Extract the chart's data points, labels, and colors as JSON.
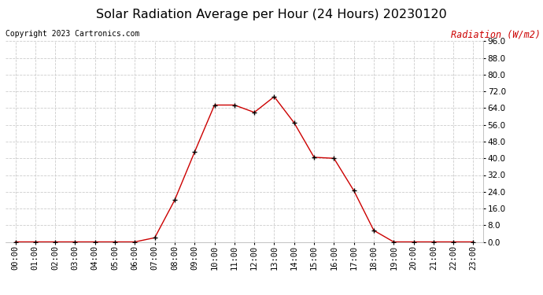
{
  "title": "Solar Radiation Average per Hour (24 Hours) 20230120",
  "copyright": "Copyright 2023 Cartronics.com",
  "ylabel": "Radiation (W/m2)",
  "hours": [
    "00:00",
    "01:00",
    "02:00",
    "03:00",
    "04:00",
    "05:00",
    "06:00",
    "07:00",
    "08:00",
    "09:00",
    "10:00",
    "11:00",
    "12:00",
    "13:00",
    "14:00",
    "15:00",
    "16:00",
    "17:00",
    "18:00",
    "19:00",
    "20:00",
    "21:00",
    "22:00",
    "23:00"
  ],
  "values": [
    0.0,
    0.0,
    0.0,
    0.0,
    0.0,
    0.0,
    0.0,
    2.0,
    20.0,
    43.0,
    65.5,
    65.5,
    62.0,
    69.5,
    57.0,
    40.5,
    40.0,
    24.5,
    5.5,
    0.0,
    0.0,
    0.0,
    0.0,
    0.0
  ],
  "line_color": "#cc0000",
  "marker_color": "#000000",
  "title_color": "#000000",
  "ylabel_color": "#cc0000",
  "copyright_color": "#000000",
  "ylim_min": 0.0,
  "ylim_max": 96.0,
  "yticks": [
    0.0,
    8.0,
    16.0,
    24.0,
    32.0,
    40.0,
    48.0,
    56.0,
    64.0,
    72.0,
    80.0,
    88.0,
    96.0
  ],
  "bg_color": "#ffffff",
  "grid_color": "#cccccc",
  "title_fontsize": 11.5,
  "axis_fontsize": 7.5,
  "label_fontsize": 8.5,
  "copyright_fontsize": 7.0
}
